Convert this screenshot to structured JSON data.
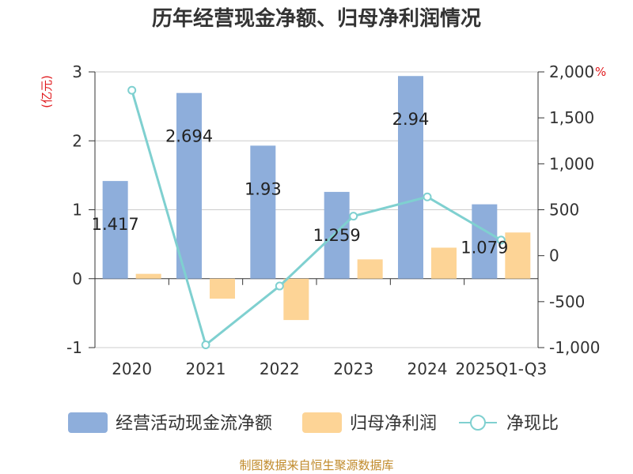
{
  "chart_data": {
    "type": "bar",
    "title": "历年经营现金净额、归母净利润情况",
    "categories": [
      "2020",
      "2021",
      "2022",
      "2023",
      "2024",
      "2025Q1-Q3"
    ],
    "left_axis": {
      "unit": "(亿元)",
      "ylim": [
        -1,
        3
      ],
      "ticks": [
        "3",
        "2",
        "1",
        "0",
        "-1"
      ]
    },
    "right_axis": {
      "unit": "%",
      "ylim": [
        -1000,
        2000
      ],
      "ticks": [
        "2,000",
        "1,500",
        "1,000",
        "500",
        "0",
        "-500",
        "-1,000"
      ]
    },
    "series": [
      {
        "name": "经营活动现金流净额",
        "kind": "bar",
        "axis": "left",
        "color": "#8eaedb",
        "values": [
          1.417,
          2.694,
          1.93,
          1.259,
          2.94,
          1.079
        ],
        "labels": [
          "1.417",
          "2.694",
          "1.93",
          "1.259",
          "2.94",
          "1.079"
        ]
      },
      {
        "name": "归母净利润",
        "kind": "bar",
        "axis": "left",
        "color": "#fdd496",
        "values": [
          0.07,
          -0.29,
          -0.6,
          0.28,
          0.45,
          0.67
        ]
      },
      {
        "name": "净现比",
        "kind": "line",
        "axis": "right",
        "color": "#7fd0d0",
        "values": [
          1800,
          -970,
          -330,
          430,
          640,
          170
        ]
      }
    ],
    "legend_position": "bottom",
    "source": "制图数据来自恒生聚源数据库"
  }
}
